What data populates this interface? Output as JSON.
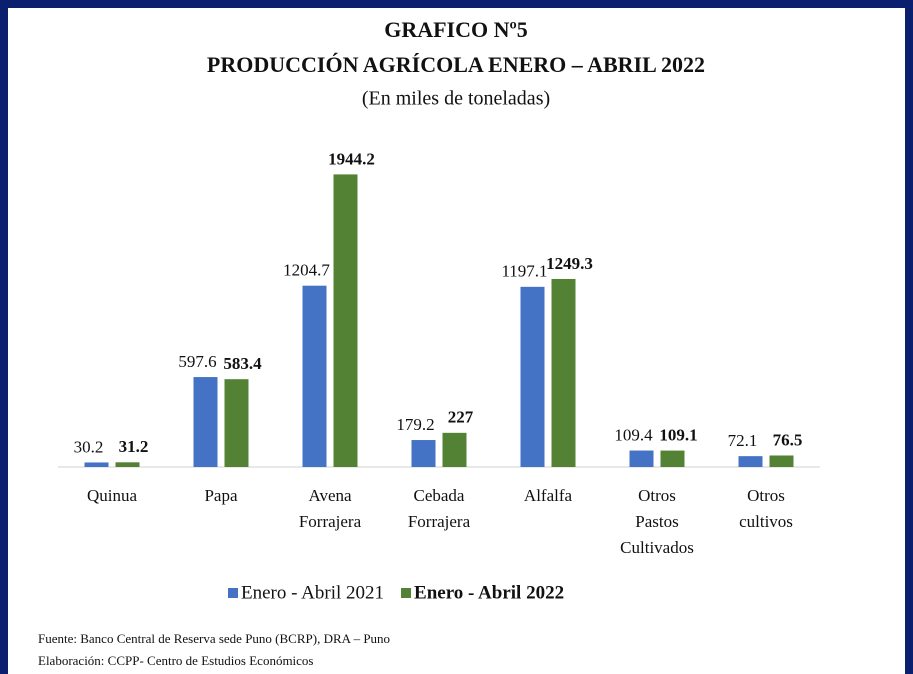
{
  "chart_data": {
    "type": "bar",
    "title": "GRAFICO Nº5",
    "subtitle": "PRODUCCIÓN AGRÍCOLA ENERO – ABRIL 2022",
    "unit_note": "(En miles de toneladas)",
    "categories": [
      [
        "Quinua"
      ],
      [
        "Papa"
      ],
      [
        "Avena",
        "Forrajera"
      ],
      [
        "Cebada",
        "Forrajera"
      ],
      [
        "Alfalfa"
      ],
      [
        "Otros",
        "Pastos",
        "Cultivados"
      ],
      [
        "Otros",
        "cultivos"
      ]
    ],
    "series": [
      {
        "name": "Enero - Abril 2021",
        "color": "#4472c4",
        "values": [
          30.2,
          597.6,
          1204.7,
          179.2,
          1197.1,
          109.4,
          72.1
        ]
      },
      {
        "name": "Enero - Abril 2022",
        "color": "#548235",
        "values": [
          31.2,
          583.4,
          1944.2,
          227,
          1249.3,
          109.1,
          76.5
        ]
      }
    ],
    "ylim": [
      0,
      2000
    ],
    "legend": "bottom",
    "source": "Fuente: Banco Central de Reserva sede Puno (BCRP), DRA – Puno",
    "credit": "Elaboración: CCPP- Centro de Estudios Económicos"
  }
}
